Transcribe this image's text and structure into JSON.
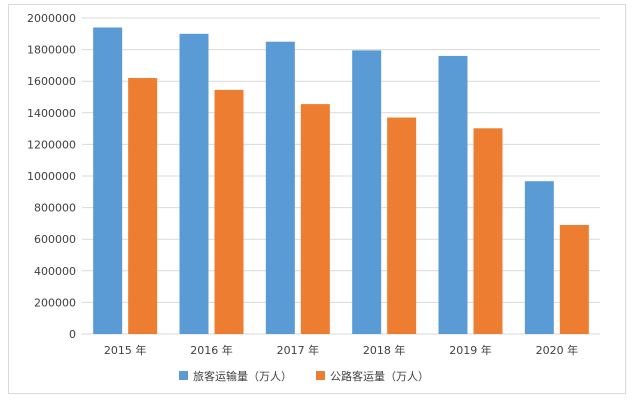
{
  "chart_data": {
    "type": "bar",
    "categories": [
      "2015 年",
      "2016 年",
      "2017 年",
      "2018 年",
      "2019 年",
      "2020 年"
    ],
    "series": [
      {
        "name": "旅客运输量（万人）",
        "color": "#5b9bd5",
        "values": [
          1940000,
          1900000,
          1850000,
          1795000,
          1760000,
          967000
        ]
      },
      {
        "name": "公路客运量（万人）",
        "color": "#ed7d31",
        "values": [
          1620000,
          1545000,
          1455000,
          1370000,
          1302000,
          690000
        ]
      }
    ],
    "ylim": [
      0,
      2000000
    ],
    "yticks": [
      0,
      200000,
      400000,
      600000,
      800000,
      1000000,
      1200000,
      1400000,
      1600000,
      1800000,
      2000000
    ],
    "ytick_labels": [
      "0",
      "200000",
      "400000",
      "600000",
      "800000",
      "1000000",
      "1200000",
      "1400000",
      "1600000",
      "1800000",
      "2000000"
    ],
    "grid": true,
    "legend_position": "bottom"
  }
}
